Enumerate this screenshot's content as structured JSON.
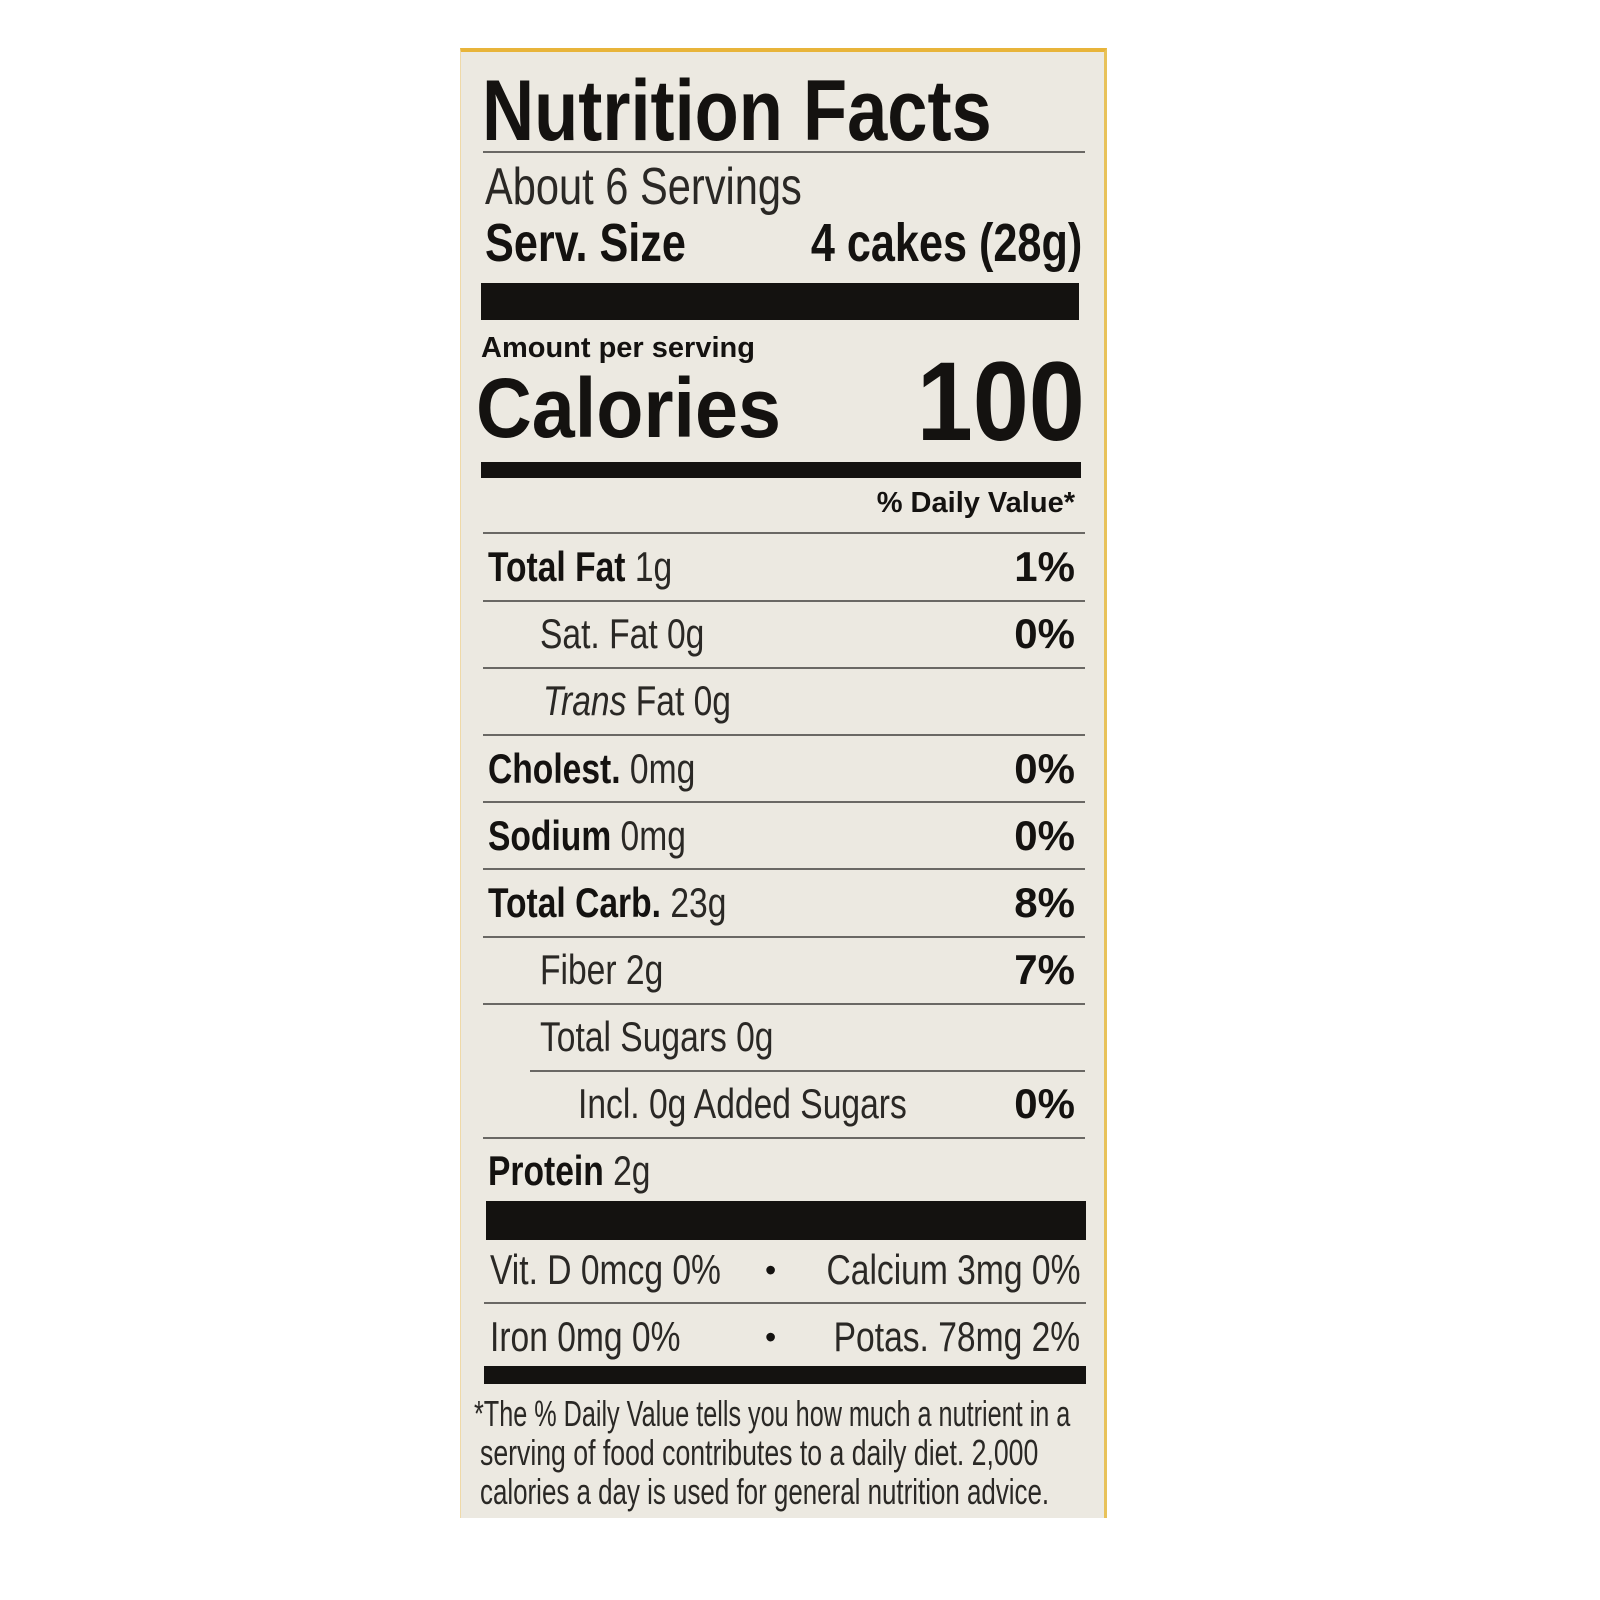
{
  "label": {
    "title": "Nutrition Facts",
    "servings": "About 6 Servings",
    "serving_size_label": "Serv. Size",
    "serving_size_value": "4 cakes (28g)",
    "amount_per_serving": "Amount per serving",
    "calories_label": "Calories",
    "calories_value": "100",
    "daily_value_header": "% Daily Value*",
    "nutrients": [
      {
        "name": "Total Fat",
        "amount": "1g",
        "dv": "1%"
      },
      {
        "name": "Sat. Fat",
        "amount": "0g",
        "dv": "0%"
      },
      {
        "name": "Trans",
        "name_rest": "Fat",
        "amount": "0g",
        "dv": ""
      },
      {
        "name": "Cholest.",
        "amount": "0mg",
        "dv": "0%"
      },
      {
        "name": "Sodium",
        "amount": "0mg",
        "dv": "0%"
      },
      {
        "name": "Total Carb.",
        "amount": "23g",
        "dv": "8%"
      },
      {
        "name": "Fiber",
        "amount": "2g",
        "dv": "7%"
      },
      {
        "name": "Total Sugars",
        "amount": "0g",
        "dv": ""
      },
      {
        "name": "Incl. 0g Added Sugars",
        "amount": "",
        "dv": "0%"
      },
      {
        "name": "Protein",
        "amount": "2g",
        "dv": ""
      }
    ],
    "micros": [
      {
        "left": "Vit. D 0mcg 0%",
        "right": "Calcium 3mg 0%"
      },
      {
        "left": "Iron 0mg 0%",
        "right": "Potas. 78mg 2%"
      }
    ],
    "bullet": "•",
    "footnote": [
      "*The % Daily Value tells you how much a nutrient in a",
      "serving of food contributes to a daily diet. 2,000",
      "calories a day is used for general nutrition advice."
    ]
  },
  "colors": {
    "background": "#ece9e1",
    "ink": "#141210",
    "package_edge": "#e8b43a"
  }
}
